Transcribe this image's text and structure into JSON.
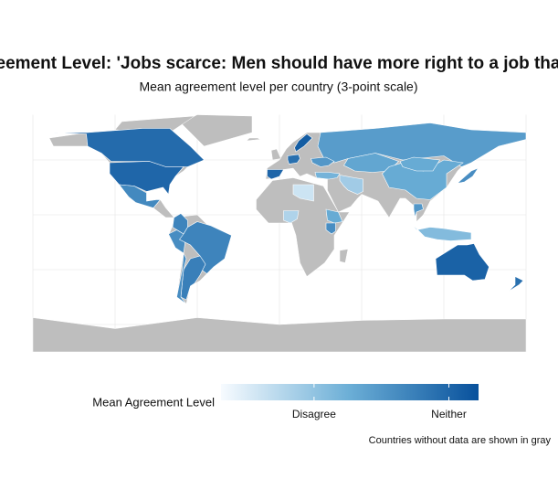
{
  "chart_data": {
    "type": "choropleth",
    "title": "Mean Agreement Level: 'Jobs scarce: Men should have more right to a job than women'",
    "subtitle": "Mean agreement level per country (3-point scale)",
    "legend_title": "Mean Agreement Level",
    "caption": "Countries without data are shown in gray",
    "values": [
      2.95,
      3.0,
      2.65,
      2.7,
      2.6,
      2.7,
      2.75,
      2.6,
      1.6,
      1.8,
      2.3,
      2.6,
      2.45,
      2.35,
      2.3,
      2.3,
      2.6,
      3.0,
      2.9,
      3.1,
      2.5,
      2.2,
      1.9,
      2.5,
      2.1,
      3.05,
      2.9
    ],
    "colors": [
      "#f7fbff",
      "#6baed6",
      "#08519c"
    ],
    "missing_color": "#bebebe",
    "clim": [
      1.31,
      3.22
    ],
    "cticks": [
      {
        "value": 2,
        "label": "Disagree"
      },
      {
        "value": 3,
        "label": "Neither"
      }
    ]
  }
}
